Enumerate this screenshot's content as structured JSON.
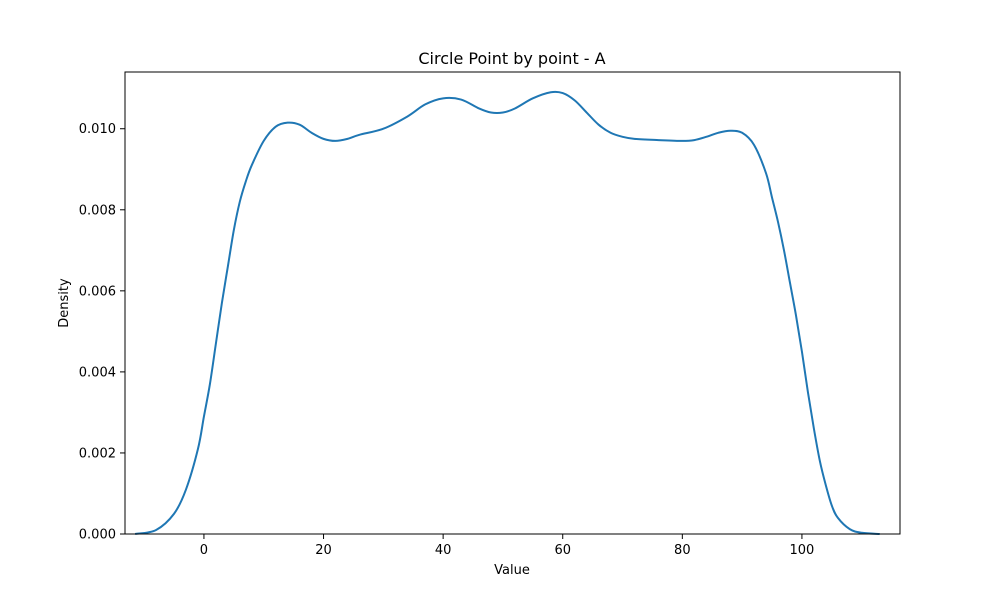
{
  "chart_data": {
    "type": "line",
    "title": "Circle Point by point - A",
    "xlabel": "Value",
    "ylabel": "Density",
    "xlim": [
      -13.2,
      116.4
    ],
    "ylim": [
      0,
      0.0114
    ],
    "x_ticks": [
      0,
      20,
      40,
      60,
      80,
      100
    ],
    "x_tick_labels": [
      "0",
      "20",
      "40",
      "60",
      "80",
      "100"
    ],
    "y_ticks": [
      0.0,
      0.002,
      0.004,
      0.006,
      0.008,
      0.01
    ],
    "y_tick_labels": [
      "0.000",
      "0.002",
      "0.004",
      "0.006",
      "0.008",
      "0.010"
    ],
    "grid": false,
    "series": [
      {
        "color": "#1f77b4",
        "x": [
          -11.5,
          -8,
          -5,
          -3,
          -1,
          0,
          1,
          2,
          3,
          4,
          5,
          6,
          7,
          8,
          10,
          12,
          14,
          16,
          18,
          20,
          22,
          24,
          26,
          30,
          34,
          37,
          40,
          43,
          46,
          48,
          50,
          52,
          55,
          58,
          60,
          62,
          64,
          66,
          68,
          70,
          72,
          76,
          80,
          82,
          84,
          86,
          88,
          90,
          92,
          94,
          95,
          96,
          97,
          98,
          99,
          100,
          101,
          102,
          103,
          104,
          105,
          106,
          108,
          110,
          113
        ],
        "y": [
          0.0,
          0.0001,
          0.0005,
          0.0011,
          0.0021,
          0.0029,
          0.0037,
          0.0047,
          0.0057,
          0.0066,
          0.0075,
          0.0082,
          0.0087,
          0.0091,
          0.0097,
          0.01005,
          0.01015,
          0.0101,
          0.0099,
          0.00975,
          0.0097,
          0.00975,
          0.00985,
          0.01,
          0.0103,
          0.0106,
          0.01075,
          0.01072,
          0.0105,
          0.0104,
          0.0104,
          0.0105,
          0.01075,
          0.0109,
          0.01088,
          0.0107,
          0.0104,
          0.0101,
          0.0099,
          0.0098,
          0.00975,
          0.00972,
          0.0097,
          0.00972,
          0.0098,
          0.0099,
          0.00995,
          0.0099,
          0.0096,
          0.0089,
          0.0083,
          0.0077,
          0.007,
          0.0062,
          0.0054,
          0.0045,
          0.0035,
          0.0026,
          0.0018,
          0.0012,
          0.0007,
          0.0004,
          0.00012,
          3e-05,
          0.0
        ]
      }
    ]
  }
}
